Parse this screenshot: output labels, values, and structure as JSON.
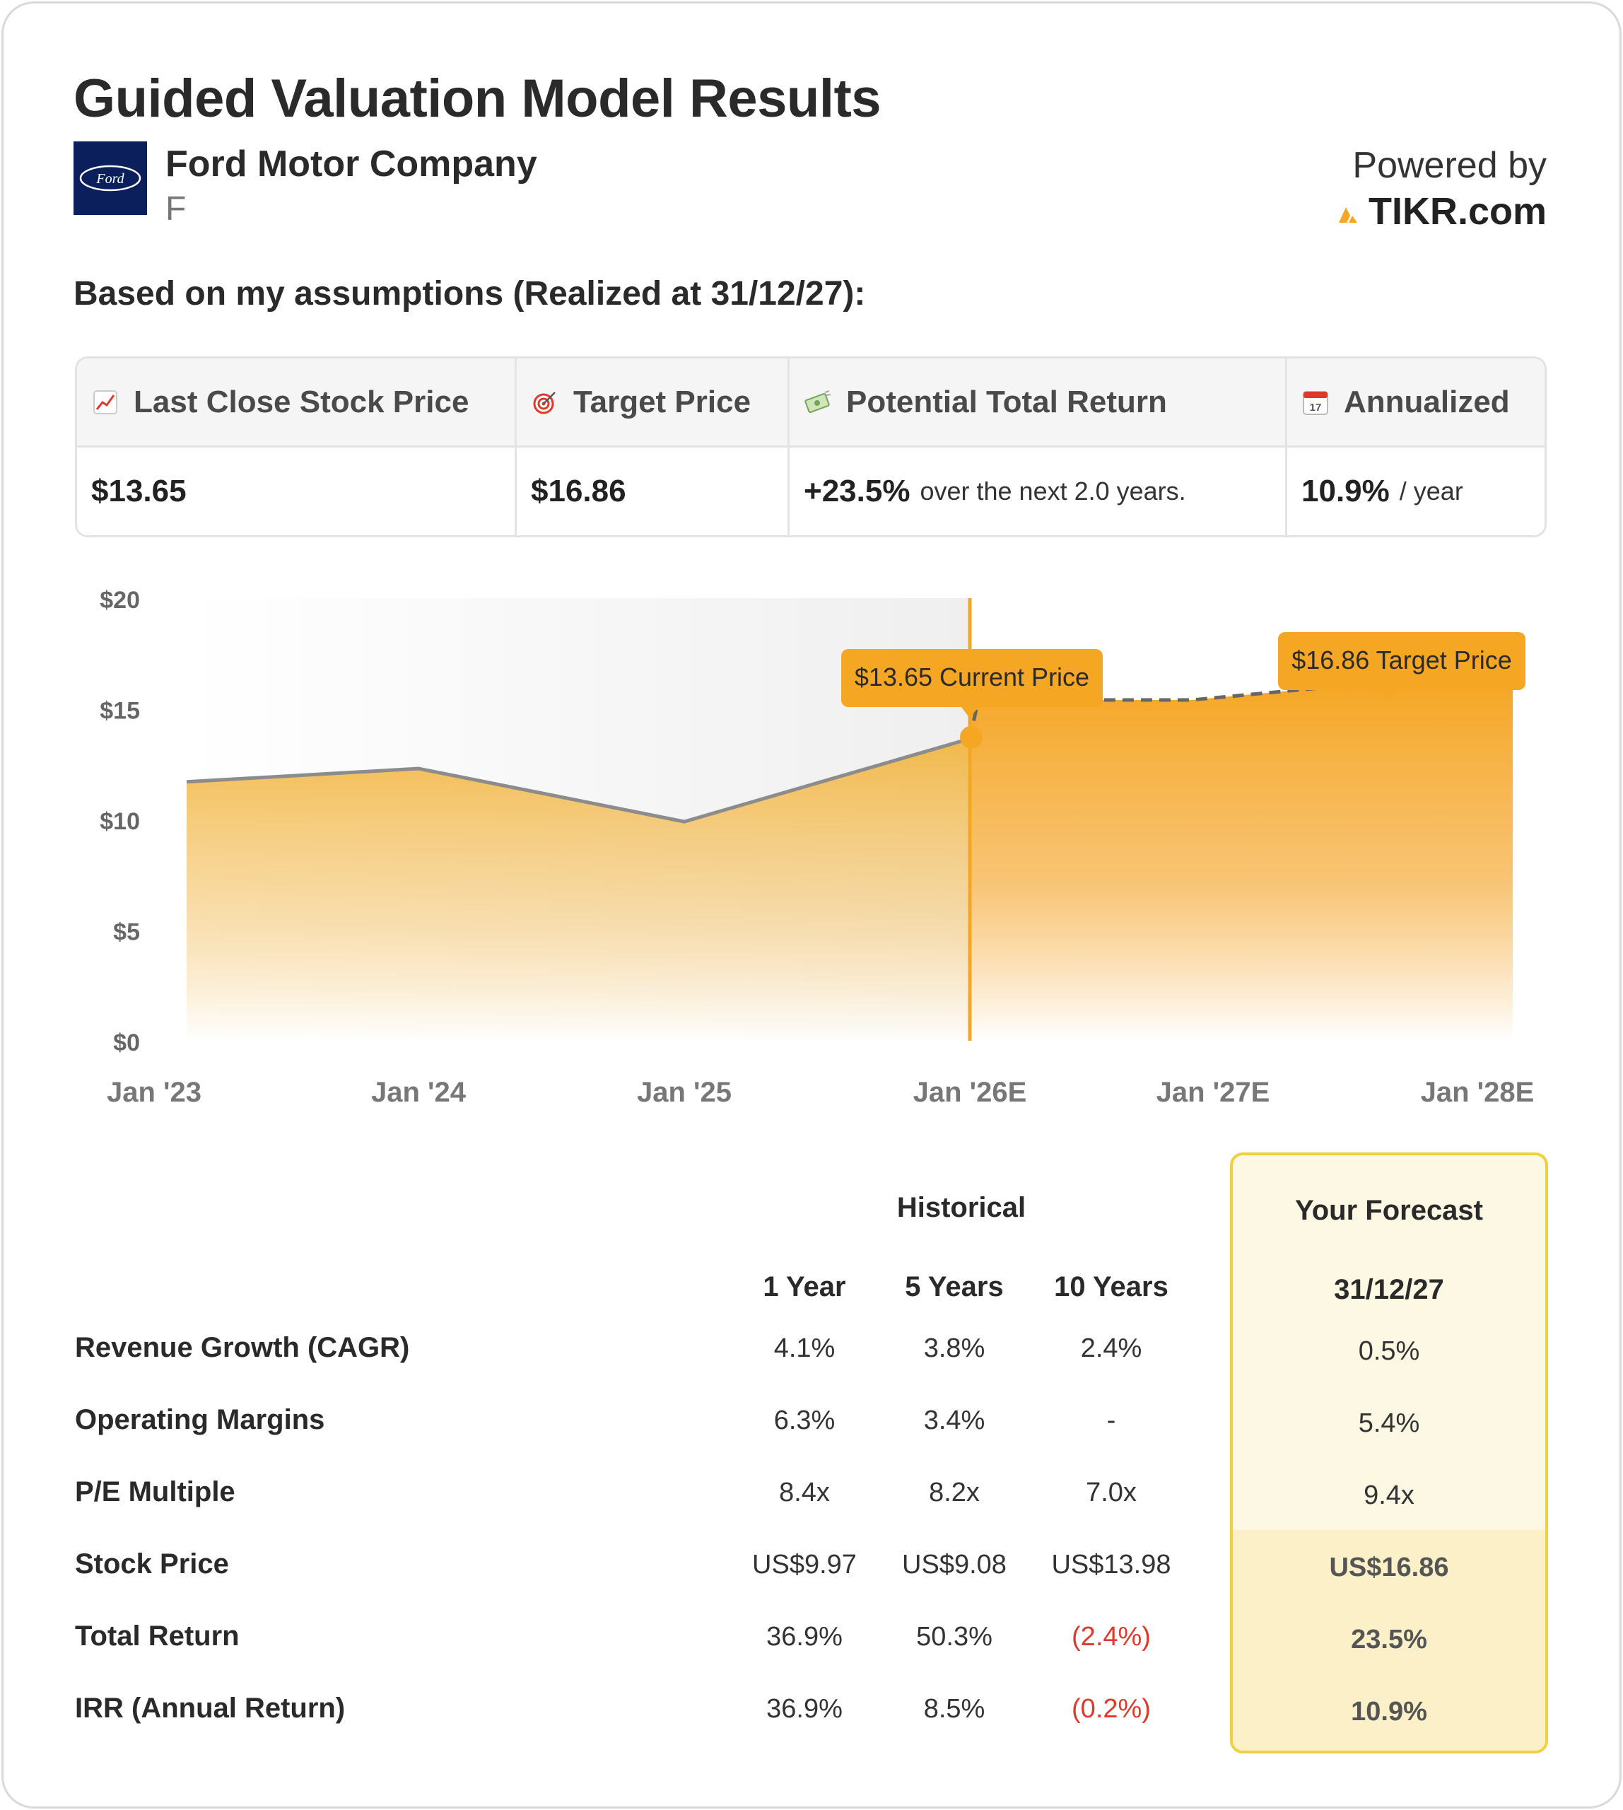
{
  "title": "Guided Valuation Model Results",
  "company": {
    "name": "Ford Motor Company",
    "ticker": "F",
    "logo_text": "Ford"
  },
  "powered": {
    "label": "Powered by",
    "brand": "TIKR.com"
  },
  "assumptions_text": "Based on my assumptions (Realized at 31/12/27):",
  "summary": {
    "headers": [
      {
        "label": "Last Close Stock Price",
        "icon": "chart-up-icon"
      },
      {
        "label": "Target Price",
        "icon": "target-icon"
      },
      {
        "label": "Potential Total Return",
        "icon": "money-icon"
      },
      {
        "label": "Annualized",
        "icon": "calendar-icon",
        "icon_text": "17"
      }
    ],
    "last_close": "$13.65",
    "target": "$16.86",
    "total_return": "+23.5%",
    "total_return_suffix": "over the next 2.0 years.",
    "annualized": "10.9%",
    "annualized_suffix": "/ year"
  },
  "chart_data": {
    "type": "area",
    "x": [
      "Jan '23",
      "Jan '24",
      "Jan '25",
      "Jan '26E",
      "Jan '27E",
      "Jan '28E"
    ],
    "y_ticks": [
      "$20",
      "$15",
      "$10",
      "$5",
      "$0"
    ],
    "ylim": [
      0,
      20
    ],
    "historical": [
      {
        "x": "Jan '23",
        "y": 11.7
      },
      {
        "x": "Jan '24",
        "y": 12.3
      },
      {
        "x": "Jan '25",
        "y": 9.9
      },
      {
        "x": "Jan '26E",
        "y": 13.65
      }
    ],
    "forecast": [
      {
        "x": "Jan '26E",
        "y": 15.4
      },
      {
        "x": "Jan '27E",
        "y": 15.4
      },
      {
        "x": "Jan '28E",
        "y": 16.86
      }
    ],
    "annotations": {
      "current": "$13.65 Current Price",
      "target": "$16.86 Target Price"
    },
    "colors": {
      "accent": "#f5a623",
      "line": "#8c8c8c",
      "bg_shade": "#f2f2f2"
    }
  },
  "table": {
    "historical_label": "Historical",
    "forecast_label": "Your Forecast",
    "columns": [
      "1 Year",
      "5 Years",
      "10 Years"
    ],
    "forecast_date": "31/12/27",
    "rows": [
      {
        "label": "Revenue Growth (CAGR)",
        "values": [
          "4.1%",
          "3.8%",
          "2.4%"
        ],
        "forecast": "0.5%"
      },
      {
        "label": "Operating Margins",
        "values": [
          "6.3%",
          "3.4%",
          "-"
        ],
        "forecast": "5.4%"
      },
      {
        "label": "P/E Multiple",
        "values": [
          "8.4x",
          "8.2x",
          "7.0x"
        ],
        "forecast": "9.4x"
      },
      {
        "label": "Stock Price",
        "values": [
          "US$9.97",
          "US$9.08",
          "US$13.98"
        ],
        "forecast": "US$16.86"
      },
      {
        "label": "Total Return",
        "values": [
          "36.9%",
          "50.3%",
          "(2.4%)"
        ],
        "forecast": "23.5%"
      },
      {
        "label": "IRR (Annual Return)",
        "values": [
          "36.9%",
          "8.5%",
          "(0.2%)"
        ],
        "forecast": "10.9%"
      }
    ]
  }
}
